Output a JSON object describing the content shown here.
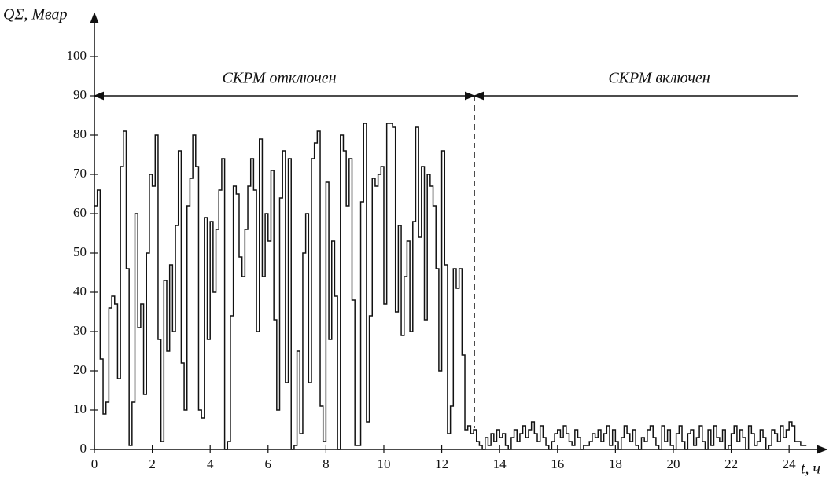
{
  "chart_data": {
    "type": "step",
    "y_label": "QΣ, Мвар",
    "x_label": "t, ч",
    "annotations": [
      "СКРМ отключен",
      "СКРМ включен"
    ],
    "color": "#111111",
    "xlim": [
      0,
      25.3
    ],
    "ylim": [
      0,
      111
    ],
    "xticks": [
      0,
      2,
      4,
      6,
      8,
      10,
      12,
      14,
      16,
      18,
      20,
      22,
      24
    ],
    "yticks": [
      0,
      10,
      20,
      30,
      40,
      50,
      60,
      70,
      80,
      90,
      100
    ],
    "x": [
      0,
      0.1,
      0.2,
      0.3,
      0.4,
      0.5,
      0.6,
      0.7,
      0.8,
      0.9,
      1,
      1.1,
      1.2,
      1.3,
      1.4,
      1.5,
      1.6,
      1.7,
      1.8,
      1.9,
      2,
      2.1,
      2.2,
      2.3,
      2.4,
      2.5,
      2.6,
      2.7,
      2.8,
      2.9,
      3,
      3.1,
      3.2,
      3.3,
      3.4,
      3.5,
      3.6,
      3.7,
      3.8,
      3.9,
      4,
      4.1,
      4.2,
      4.3,
      4.4,
      4.5,
      4.6,
      4.7,
      4.8,
      4.9,
      5,
      5.1,
      5.2,
      5.3,
      5.4,
      5.5,
      5.6,
      5.7,
      5.8,
      5.9,
      6,
      6.1,
      6.2,
      6.3,
      6.4,
      6.5,
      6.6,
      6.7,
      6.8,
      6.9,
      7,
      7.1,
      7.2,
      7.3,
      7.4,
      7.5,
      7.6,
      7.7,
      7.8,
      7.9,
      8,
      8.1,
      8.2,
      8.3,
      8.4,
      8.5,
      8.6,
      8.7,
      8.8,
      8.9,
      9,
      9.1,
      9.2,
      9.3,
      9.4,
      9.5,
      9.6,
      9.7,
      9.8,
      9.9,
      10,
      10.1,
      10.2,
      10.3,
      10.4,
      10.5,
      10.6,
      10.7,
      10.8,
      10.9,
      11,
      11.1,
      11.2,
      11.3,
      11.4,
      11.5,
      11.6,
      11.7,
      11.8,
      11.9,
      12,
      12.1,
      12.2,
      12.3,
      12.4,
      12.5,
      12.6,
      12.7,
      12.8,
      12.9,
      13,
      13.1,
      13.2,
      13.3,
      13.4,
      13.5,
      13.6,
      13.7,
      13.8,
      13.9,
      14,
      14.1,
      14.2,
      14.3,
      14.4,
      14.5,
      14.6,
      14.7,
      14.8,
      14.9,
      15,
      15.1,
      15.2,
      15.3,
      15.4,
      15.5,
      15.6,
      15.7,
      15.8,
      15.9,
      16,
      16.1,
      16.2,
      16.3,
      16.4,
      16.5,
      16.6,
      16.7,
      16.8,
      16.9,
      17,
      17.1,
      17.2,
      17.3,
      17.4,
      17.5,
      17.6,
      17.7,
      17.8,
      17.9,
      18,
      18.1,
      18.2,
      18.3,
      18.4,
      18.5,
      18.6,
      18.7,
      18.8,
      18.9,
      19,
      19.1,
      19.2,
      19.3,
      19.4,
      19.5,
      19.6,
      19.7,
      19.8,
      19.9,
      20,
      20.1,
      20.2,
      20.3,
      20.4,
      20.5,
      20.6,
      20.7,
      20.8,
      20.9,
      21,
      21.1,
      21.2,
      21.3,
      21.4,
      21.5,
      21.6,
      21.7,
      21.8,
      21.9,
      22,
      22.1,
      22.2,
      22.3,
      22.4,
      22.5,
      22.6,
      22.7,
      22.8,
      22.9,
      23,
      23.1,
      23.2,
      23.3,
      23.4,
      23.5,
      23.6,
      23.7,
      23.8,
      23.9,
      24,
      24.1,
      24.2,
      24.3,
      24.4,
      24.5
    ],
    "values": [
      62,
      66,
      23,
      9,
      12,
      36,
      39,
      37,
      18,
      72,
      81,
      46,
      1,
      12,
      60,
      31,
      37,
      14,
      50,
      70,
      67,
      80,
      28,
      2,
      43,
      25,
      47,
      30,
      57,
      76,
      22,
      10,
      62,
      69,
      80,
      72,
      10,
      8,
      59,
      28,
      58,
      40,
      56,
      66,
      74,
      0,
      2,
      34,
      67,
      65,
      49,
      44,
      56,
      67,
      74,
      66,
      30,
      79,
      44,
      60,
      53,
      71,
      33,
      10,
      64,
      76,
      17,
      74,
      0,
      1,
      25,
      4,
      50,
      60,
      17,
      74,
      78,
      81,
      11,
      2,
      68,
      28,
      53,
      39,
      0,
      80,
      76,
      62,
      74,
      38,
      1,
      1,
      63,
      83,
      7,
      34,
      69,
      67,
      70,
      72,
      37,
      83,
      83,
      82,
      35,
      57,
      29,
      44,
      53,
      30,
      58,
      82,
      54,
      72,
      33,
      70,
      67,
      62,
      46,
      20,
      76,
      47,
      4,
      11,
      46,
      41,
      46,
      24,
      5,
      6,
      4,
      5,
      2,
      1,
      0,
      3,
      1,
      4,
      2,
      5,
      3,
      4,
      1,
      0,
      3,
      5,
      2,
      4,
      6,
      3,
      5,
      7,
      4,
      2,
      6,
      3,
      1,
      0,
      2,
      4,
      5,
      3,
      6,
      4,
      2,
      1,
      5,
      3,
      0,
      1,
      1,
      2,
      4,
      3,
      5,
      2,
      4,
      6,
      1,
      5,
      2,
      0,
      3,
      6,
      4,
      2,
      5,
      1,
      0,
      3,
      2,
      5,
      6,
      3,
      1,
      0,
      6,
      2,
      5,
      1,
      0,
      4,
      6,
      2,
      0,
      4,
      5,
      1,
      3,
      6,
      2,
      0,
      5,
      1,
      6,
      3,
      2,
      5,
      0,
      1,
      4,
      6,
      2,
      5,
      3,
      0,
      6,
      4,
      1,
      2,
      5,
      3,
      0,
      1,
      5,
      4,
      2,
      6,
      3,
      5,
      7,
      6,
      2,
      2,
      1,
      1
    ]
  }
}
